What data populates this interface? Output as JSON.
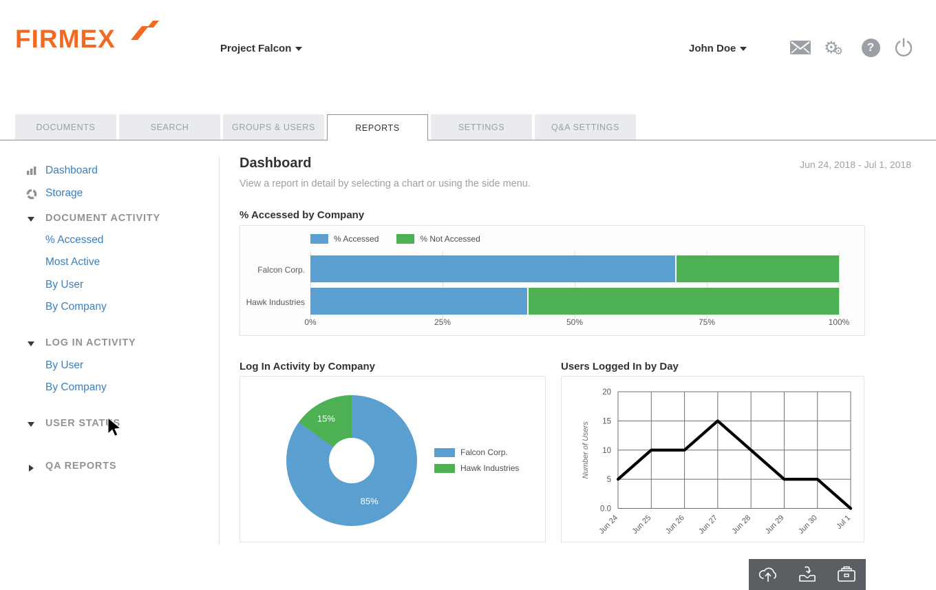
{
  "header": {
    "logo": "FIRMEX",
    "project_selector": "Project Falcon",
    "user_menu": "John Doe",
    "icons": [
      "mail-icon",
      "settings-gears-icon",
      "help-icon",
      "logout-power-icon"
    ]
  },
  "tabs": [
    {
      "label": "DOCUMENTS",
      "active": false
    },
    {
      "label": "SEARCH",
      "active": false
    },
    {
      "label": "GROUPS & USERS",
      "active": false
    },
    {
      "label": "REPORTS",
      "active": true
    },
    {
      "label": "SETTINGS",
      "active": false
    },
    {
      "label": "Q&A SETTINGS",
      "active": false
    }
  ],
  "sidebar": {
    "items": [
      {
        "label": "Dashboard",
        "type": "link",
        "icon": "bar-chart-icon"
      },
      {
        "label": "Storage",
        "type": "link",
        "icon": "storage-donut-icon"
      },
      {
        "label": "DOCUMENT ACTIVITY",
        "type": "section",
        "state": "expanded"
      },
      {
        "label": "% Accessed",
        "type": "sublink"
      },
      {
        "label": "Most Active",
        "type": "sublink"
      },
      {
        "label": "By User",
        "type": "sublink"
      },
      {
        "label": "By Company",
        "type": "sublink"
      },
      {
        "label": "LOG IN ACTIVITY",
        "type": "section",
        "state": "expanded"
      },
      {
        "label": "By User",
        "type": "sublink"
      },
      {
        "label": "By Company",
        "type": "sublink"
      },
      {
        "label": "USER STATUS",
        "type": "section",
        "state": "expanded"
      },
      {
        "label": "QA REPORTS",
        "type": "section",
        "state": "collapsed"
      }
    ]
  },
  "main": {
    "title": "Dashboard",
    "subtitle": "View a report in detail by selecting a chart or using the side menu.",
    "date_range": "Jun 24, 2018 - Jul 1, 2018"
  },
  "colors": {
    "brand_orange": "#f26a21",
    "link_blue": "#3a80c0",
    "chart_blue": "#5b9fd1",
    "chart_green": "#4db153",
    "toolbar_gray": "#5b5f63"
  },
  "chart_data": [
    {
      "id": "accessed-by-company",
      "type": "bar",
      "stacked": true,
      "horizontal": true,
      "title": "% Accessed by Company",
      "categories": [
        "Falcon Corp.",
        "Hawk Industries"
      ],
      "series": [
        {
          "name": "% Accessed",
          "color": "#5b9fd1",
          "values": [
            69,
            41
          ]
        },
        {
          "name": "% Not Accessed",
          "color": "#4db153",
          "values": [
            31,
            59
          ]
        }
      ],
      "xlim": [
        0,
        100
      ],
      "x_ticks": [
        "0%",
        "25%",
        "50%",
        "75%",
        "100%"
      ],
      "legend_position": "top"
    },
    {
      "id": "login-activity-by-company",
      "type": "pie",
      "donut": true,
      "title": "Log In Activity by Company",
      "labels": [
        "Falcon Corp.",
        "Hawk Industries"
      ],
      "values": [
        85,
        15
      ],
      "colors": [
        "#5b9fd1",
        "#4db153"
      ],
      "slice_labels": [
        "85%",
        "15%"
      ],
      "legend_position": "right"
    },
    {
      "id": "users-logged-in-by-day",
      "type": "line",
      "title": "Users Logged In by Day",
      "x": [
        "Jun 24",
        "Jun 25",
        "Jun 26",
        "Jun 27",
        "Jun 28",
        "Jun 29",
        "Jun 30",
        "Jul 1"
      ],
      "values": [
        5,
        10,
        10,
        15,
        10,
        5,
        5,
        0
      ],
      "ylabel": "Number of Users",
      "y_ticks": [
        "0.0",
        "5",
        "10",
        "15",
        "20"
      ],
      "y_tick_values": [
        0,
        5,
        10,
        15,
        20
      ],
      "ylim": [
        0,
        20
      ],
      "grid": true,
      "line_color": "#000000"
    }
  ]
}
